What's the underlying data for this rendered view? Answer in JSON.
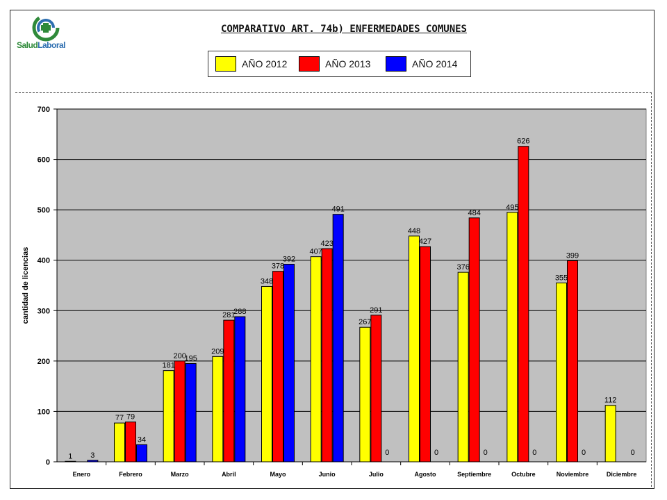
{
  "header": {
    "title": "COMPARATIVO ART. 74b) ENFERMEDADES COMUNES",
    "logo_text_part1": "Salud",
    "logo_text_part2": "Laboral",
    "logo_icon": "cross-swirl-logo-icon"
  },
  "chart_data": {
    "type": "bar",
    "title": "COMPARATIVO ART. 74b) ENFERMEDADES COMUNES",
    "xlabel": "",
    "ylabel": "cantidad de licencias",
    "ylim": [
      0,
      700
    ],
    "yticks": [
      0,
      100,
      200,
      300,
      400,
      500,
      600,
      700
    ],
    "grid": true,
    "legend_position": "top-center",
    "background_color": "#c0c0c0",
    "categories": [
      "Enero",
      "Febrero",
      "Marzo",
      "Abril",
      "Mayo",
      "Junio",
      "Julio",
      "Agosto",
      "Septiembre",
      "Octubre",
      "Noviembre",
      "Diciembre"
    ],
    "series": [
      {
        "name": "AÑO 2012",
        "color": "#ffff00",
        "values": [
          1,
          77,
          181,
          209,
          348,
          407,
          267,
          448,
          376,
          495,
          355,
          112
        ]
      },
      {
        "name": "AÑO 2013",
        "color": "#ff0000",
        "values": [
          null,
          79,
          200,
          281,
          378,
          423,
          291,
          427,
          484,
          626,
          399,
          null
        ]
      },
      {
        "name": "AÑO 2014",
        "color": "#0000ff",
        "values": [
          3,
          34,
          195,
          288,
          392,
          491,
          0,
          0,
          0,
          0,
          0,
          0
        ]
      }
    ]
  }
}
